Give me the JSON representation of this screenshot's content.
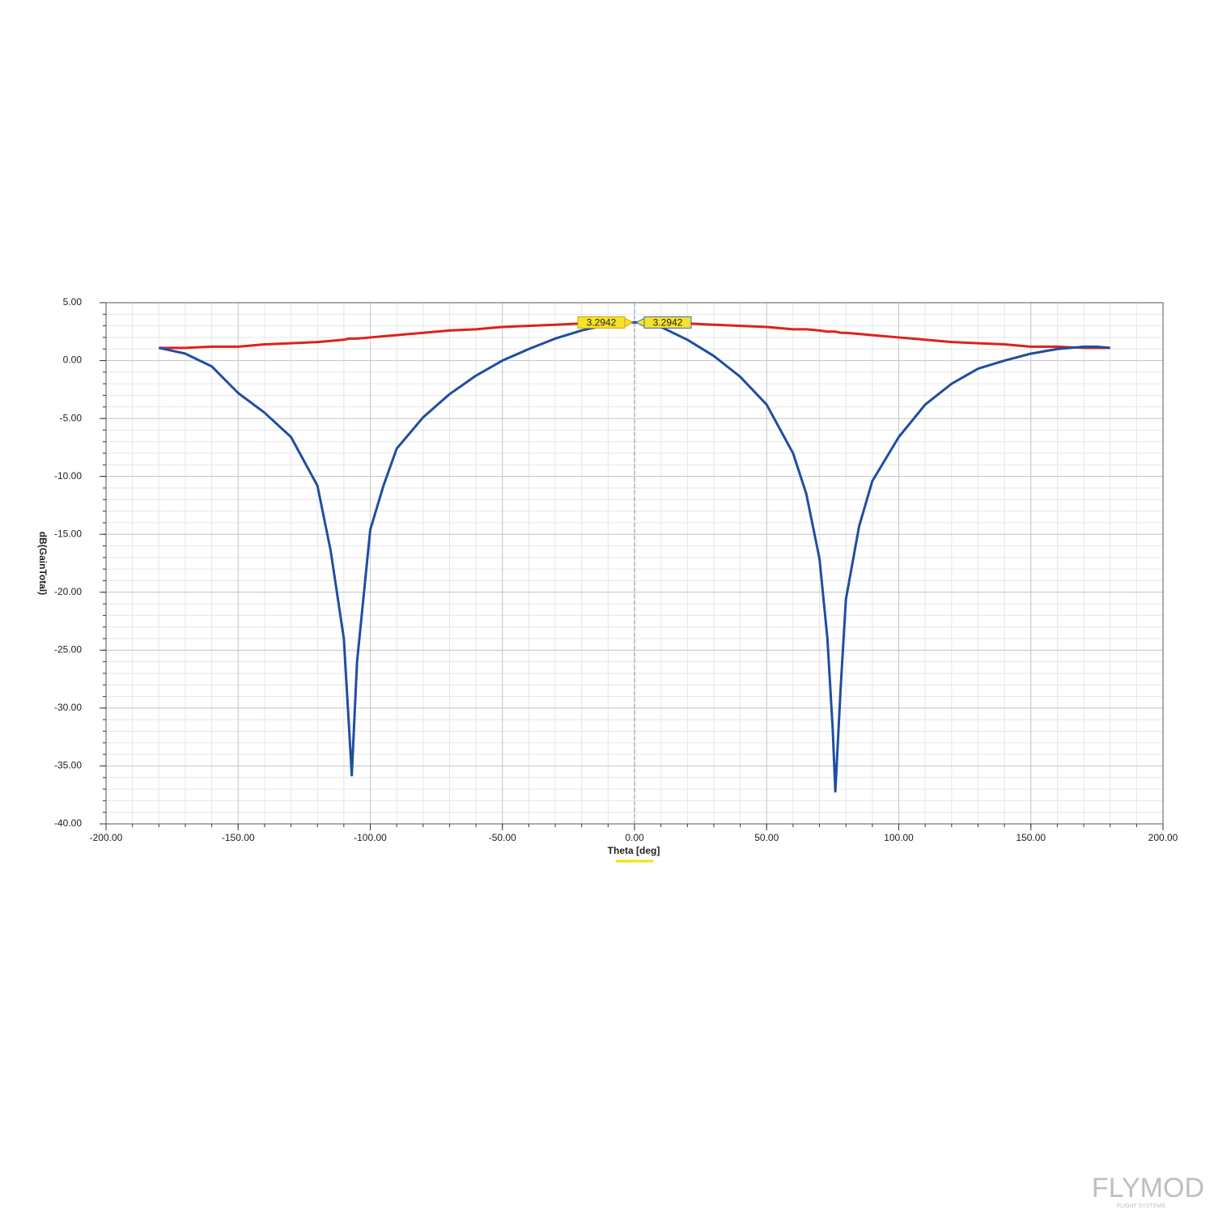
{
  "chart_data": {
    "type": "line",
    "xlabel": "Theta [deg]",
    "ylabel": "dB(GainTotal)",
    "x": [
      -180,
      -170,
      -160,
      -150,
      -140,
      -130,
      -120,
      -115,
      -110,
      -108,
      -107,
      -105,
      -100,
      -95,
      -90,
      -80,
      -70,
      -60,
      -50,
      -40,
      -30,
      -20,
      -10,
      -3,
      0,
      3,
      10,
      20,
      30,
      40,
      50,
      60,
      65,
      70,
      73,
      75,
      76,
      78,
      80,
      85,
      90,
      100,
      110,
      120,
      130,
      140,
      150,
      160,
      170,
      175,
      180
    ],
    "series": [
      {
        "color": "#e0201b",
        "values": [
          1.1,
          1.1,
          1.2,
          1.2,
          1.4,
          1.5,
          1.6,
          1.7,
          1.8,
          1.9,
          1.9,
          1.9,
          2.0,
          2.1,
          2.2,
          2.4,
          2.6,
          2.7,
          2.9,
          3.0,
          3.1,
          3.2,
          3.3,
          3.29,
          3.2942,
          3.29,
          3.3,
          3.2,
          3.1,
          3.0,
          2.9,
          2.7,
          2.7,
          2.6,
          2.5,
          2.5,
          2.5,
          2.4,
          2.4,
          2.3,
          2.2,
          2.0,
          1.8,
          1.6,
          1.5,
          1.4,
          1.2,
          1.2,
          1.1,
          1.1,
          1.1
        ],
        "value_labels": [
          null,
          null,
          null,
          null,
          null,
          null,
          null,
          null,
          null,
          null,
          null,
          null,
          null,
          null,
          null,
          null,
          null,
          null,
          null,
          null,
          null,
          null,
          null,
          null,
          "3.2942",
          null,
          null,
          null,
          null,
          null,
          null,
          null,
          null,
          null,
          null,
          null,
          null,
          null,
          null,
          null,
          null,
          null,
          null,
          null,
          null,
          null,
          null,
          null,
          null,
          null,
          null
        ]
      },
      {
        "color": "#1f4ea1",
        "values": [
          1.1,
          0.6,
          -0.5,
          -2.8,
          -4.5,
          -6.6,
          -10.8,
          -16.4,
          -24,
          -31.8,
          -35.8,
          -26,
          -14.6,
          -10.8,
          -7.6,
          -4.9,
          -2.9,
          -1.3,
          0.0,
          1.0,
          1.9,
          2.6,
          3.1,
          3.29,
          3.2942,
          3.28,
          2.9,
          1.8,
          0.4,
          -1.4,
          -3.8,
          -8,
          -11.5,
          -17.1,
          -24,
          -31.8,
          -37.2,
          -28.3,
          -20.6,
          -14.3,
          -10.4,
          -6.6,
          -3.8,
          -2.0,
          -0.7,
          0.0,
          0.6,
          1.0,
          1.2,
          1.2,
          1.1
        ],
        "value_labels": [
          null,
          null,
          null,
          null,
          null,
          null,
          null,
          null,
          null,
          null,
          null,
          null,
          null,
          null,
          null,
          null,
          null,
          null,
          null,
          null,
          null,
          null,
          null,
          null,
          "3.2942",
          null,
          null,
          null,
          null,
          null,
          null,
          null,
          null,
          null,
          null,
          null,
          null,
          null,
          null,
          null,
          null,
          null,
          null,
          null,
          null,
          null,
          null,
          null,
          null,
          null,
          null
        ]
      }
    ],
    "xlim": [
      -200,
      200
    ],
    "xticks": [
      {
        "value": -200,
        "label": "-200.00"
      },
      {
        "value": -150,
        "label": "-150.00"
      },
      {
        "value": -100,
        "label": "-100.00"
      },
      {
        "value": -50,
        "label": "-50.00"
      },
      {
        "value": 0,
        "label": "0.00"
      },
      {
        "value": 50,
        "label": "50.00"
      },
      {
        "value": 100,
        "label": "100.00"
      },
      {
        "value": 150,
        "label": "150.00"
      },
      {
        "value": 200,
        "label": "200.00"
      }
    ],
    "ylim": [
      -40,
      5
    ],
    "yticks": [
      {
        "value": 5,
        "label": "5.00"
      },
      {
        "value": 0,
        "label": "0.00"
      },
      {
        "value": -5,
        "label": "-5.00"
      },
      {
        "value": -10,
        "label": "-10.00"
      },
      {
        "value": -15,
        "label": "-15.00"
      },
      {
        "value": -20,
        "label": "-20.00"
      },
      {
        "value": -25,
        "label": "-25.00"
      },
      {
        "value": -30,
        "label": "-30.00"
      },
      {
        "value": -35,
        "label": "-35.00"
      },
      {
        "value": -40,
        "label": "-40.00"
      }
    ],
    "grid": true,
    "minor_grid": true,
    "minor_xstep": 10,
    "minor_ystep": 1,
    "cursor_x": 0
  },
  "watermark": {
    "text": "FLYMOD",
    "subtext": "FLIGHT SYSTEMS"
  }
}
